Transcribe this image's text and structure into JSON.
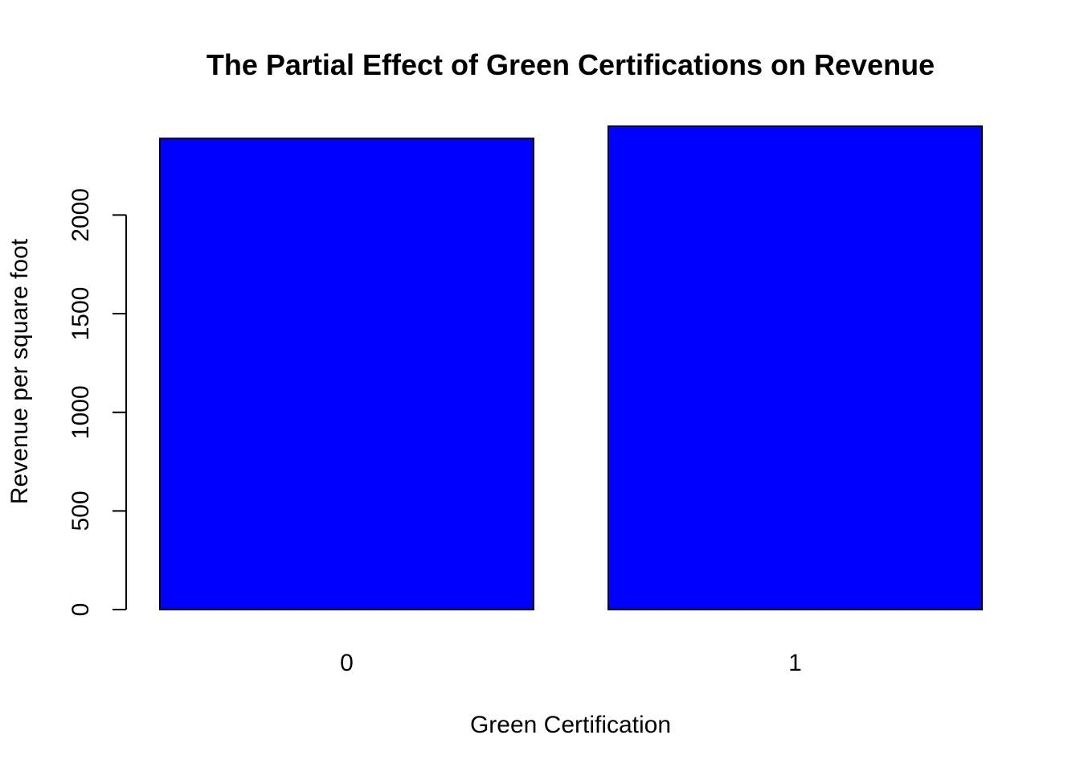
{
  "chart_data": {
    "type": "bar",
    "title": "The Partial Effect of Green Certifications on Revenue",
    "xlabel": "Green Certification",
    "ylabel": "Revenue per square foot",
    "categories": [
      "0",
      "1"
    ],
    "values": [
      2388,
      2450
    ],
    "ylim": [
      0,
      2450
    ],
    "yticks": [
      0,
      500,
      1000,
      1500,
      2000
    ],
    "ytick_labels": [
      "0",
      "500",
      "1000",
      "1500",
      "2000"
    ],
    "bar_color": "#0000ff",
    "border_color": "#000000",
    "grid": false,
    "legend": "none"
  }
}
